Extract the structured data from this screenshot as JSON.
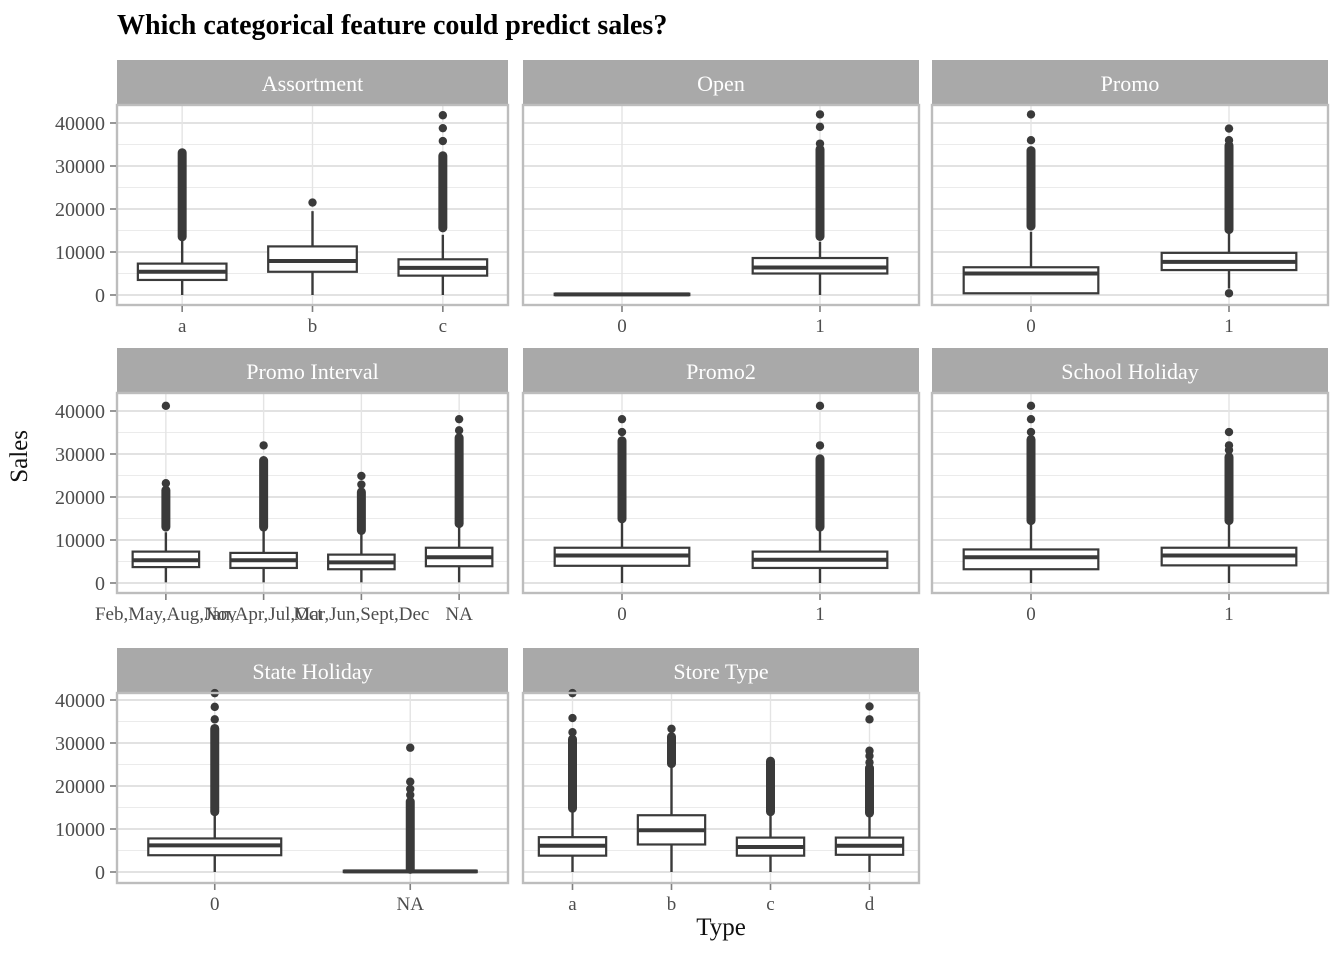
{
  "chart_data": {
    "type": "boxplot",
    "title": "Which categorical feature could predict sales?",
    "ylabel": "Sales",
    "xlabel": "Type",
    "ylim": [
      0,
      44000
    ],
    "y_ticks": [
      0,
      10000,
      20000,
      30000,
      40000
    ],
    "grid": "major and minor horizontal lines, vertical line per category",
    "legend": "none",
    "facets": [
      {
        "name": "Assortment",
        "boxes": [
          {
            "label": "a",
            "whisker_low": 0,
            "q1": 3500,
            "median": 5400,
            "q3": 7300,
            "whisker_high": 13200,
            "outlier_band": [
              13400,
              33200
            ],
            "outliers": []
          },
          {
            "label": "b",
            "whisker_low": 0,
            "q1": 5400,
            "median": 7900,
            "q3": 11300,
            "whisker_high": 19500,
            "outlier_band": null,
            "outliers": [
              21500
            ]
          },
          {
            "label": "c",
            "whisker_low": 0,
            "q1": 4500,
            "median": 6300,
            "q3": 8300,
            "whisker_high": 14000,
            "outlier_band": [
              15500,
              32500
            ],
            "outliers": [
              35800,
              38800,
              41800
            ]
          }
        ]
      },
      {
        "name": "Open",
        "boxes": [
          {
            "label": "0",
            "whisker_low": null,
            "q1": 0,
            "median": 150,
            "q3": 300,
            "whisker_high": null,
            "outlier_band": null,
            "outliers": []
          },
          {
            "label": "1",
            "whisker_low": 0,
            "q1": 5000,
            "median": 6400,
            "q3": 8600,
            "whisker_high": 12400,
            "outlier_band": [
              13500,
              34000
            ],
            "outliers": [
              35200,
              39100,
              42000
            ]
          }
        ]
      },
      {
        "name": "Promo",
        "boxes": [
          {
            "label": "0",
            "whisker_low": null,
            "q1": 400,
            "median": 5000,
            "q3": 6450,
            "whisker_high": 14700,
            "outlier_band": [
              15900,
              33700
            ],
            "outliers": [
              36000,
              42000
            ]
          },
          {
            "label": "1",
            "whisker_low": 1500,
            "q1": 5800,
            "median": 7700,
            "q3": 9800,
            "whisker_high": 14300,
            "outlier_band": [
              15100,
              34900
            ],
            "outliers": [
              36000,
              38700,
              400
            ]
          }
        ]
      },
      {
        "name": "Promo Interval",
        "boxes": [
          {
            "label": "Feb,May,Aug,Nov",
            "whisker_low": 150,
            "q1": 3700,
            "median": 5300,
            "q3": 7300,
            "whisker_high": 11800,
            "outlier_band": [
              12900,
              21700
            ],
            "outliers": [
              23200,
              41200
            ]
          },
          {
            "label": "Jan,Apr,Jul,Oct",
            "whisker_low": 150,
            "q1": 3500,
            "median": 5300,
            "q3": 7000,
            "whisker_high": 12100,
            "outlier_band": [
              12900,
              28600
            ],
            "outliers": [
              32000
            ]
          },
          {
            "label": "Mar,Jun,Sept,Dec",
            "whisker_low": 150,
            "q1": 3200,
            "median": 4800,
            "q3": 6600,
            "whisker_high": 11400,
            "outlier_band": [
              12100,
              21300
            ],
            "outliers": [
              22900,
              24900
            ]
          },
          {
            "label": "NA",
            "whisker_low": 150,
            "q1": 3900,
            "median": 6000,
            "q3": 8200,
            "whisker_high": 12900,
            "outlier_band": [
              13700,
              33900
            ],
            "outliers": [
              35500,
              38100
            ]
          }
        ]
      },
      {
        "name": "Promo2",
        "boxes": [
          {
            "label": "0",
            "whisker_low": 0,
            "q1": 4000,
            "median": 6400,
            "q3": 8200,
            "whisker_high": 14000,
            "outlier_band": [
              14800,
              33200
            ],
            "outliers": [
              35100,
              38100
            ]
          },
          {
            "label": "1",
            "whisker_low": 0,
            "q1": 3500,
            "median": 5400,
            "q3": 7300,
            "whisker_high": 12200,
            "outlier_band": [
              12900,
              29000
            ],
            "outliers": [
              32000,
              41200
            ]
          }
        ]
      },
      {
        "name": "School Holiday",
        "boxes": [
          {
            "label": "0",
            "whisker_low": 0,
            "q1": 3200,
            "median": 6000,
            "q3": 7800,
            "whisker_high": 13700,
            "outlier_band": [
              14400,
              33500
            ],
            "outliers": [
              35100,
              38100,
              41200
            ]
          },
          {
            "label": "1",
            "whisker_low": 0,
            "q1": 4100,
            "median": 6400,
            "q3": 8200,
            "whisker_high": 13700,
            "outlier_band": [
              14400,
              29400
            ],
            "outliers": [
              30900,
              32000,
              35100
            ]
          }
        ]
      },
      {
        "name": "State Holiday",
        "boxes": [
          {
            "label": "0",
            "whisker_low": 0,
            "q1": 3900,
            "median": 6200,
            "q3": 7800,
            "whisker_high": 13200,
            "outlier_band": [
              13900,
              33500
            ],
            "outliers": [
              35500,
              38400,
              41600
            ]
          },
          {
            "label": "NA",
            "whisker_low": null,
            "q1": 0,
            "median": 150,
            "q3": 300,
            "whisker_high": null,
            "outlier_band": [
              500,
              16500
            ],
            "outliers": [
              17900,
              19300,
              21000,
              28900
            ]
          }
        ]
      },
      {
        "name": "Store Type",
        "boxes": [
          {
            "label": "a",
            "whisker_low": 0,
            "q1": 3800,
            "median": 6100,
            "q3": 8100,
            "whisker_high": 13900,
            "outlier_band": [
              14700,
              31000
            ],
            "outliers": [
              32500,
              35800,
              41600
            ]
          },
          {
            "label": "b",
            "whisker_low": 0,
            "q1": 6400,
            "median": 9700,
            "q3": 13200,
            "whisker_high": 24300,
            "outlier_band": [
              25100,
              31600
            ],
            "outliers": [
              33300
            ]
          },
          {
            "label": "c",
            "whisker_low": 0,
            "q1": 3800,
            "median": 5800,
            "q3": 8000,
            "whisker_high": 13200,
            "outlier_band": [
              13900,
              25900
            ],
            "outliers": []
          },
          {
            "label": "d",
            "whisker_low": 0,
            "q1": 4000,
            "median": 6100,
            "q3": 8000,
            "whisker_high": 12800,
            "outlier_band": [
              13600,
              24300
            ],
            "outliers": [
              25500,
              27000,
              28200,
              35500,
              38500
            ]
          }
        ]
      }
    ],
    "colors": {
      "strip_bg": "#A9A9A9",
      "strip_text": "#FFFFFF",
      "box_stroke": "#3A3A3A",
      "box_fill": "#FFFFFF",
      "grid_major": "#D9D9D9",
      "grid_minor": "#EBEBEB",
      "grid_vertical": "#E4E4E4",
      "panel_border": "#BDBDBD",
      "panel_bg": "#FFFFFF",
      "axis_text": "#4D4D4D",
      "tick_mark": "#7F7F7F"
    }
  }
}
